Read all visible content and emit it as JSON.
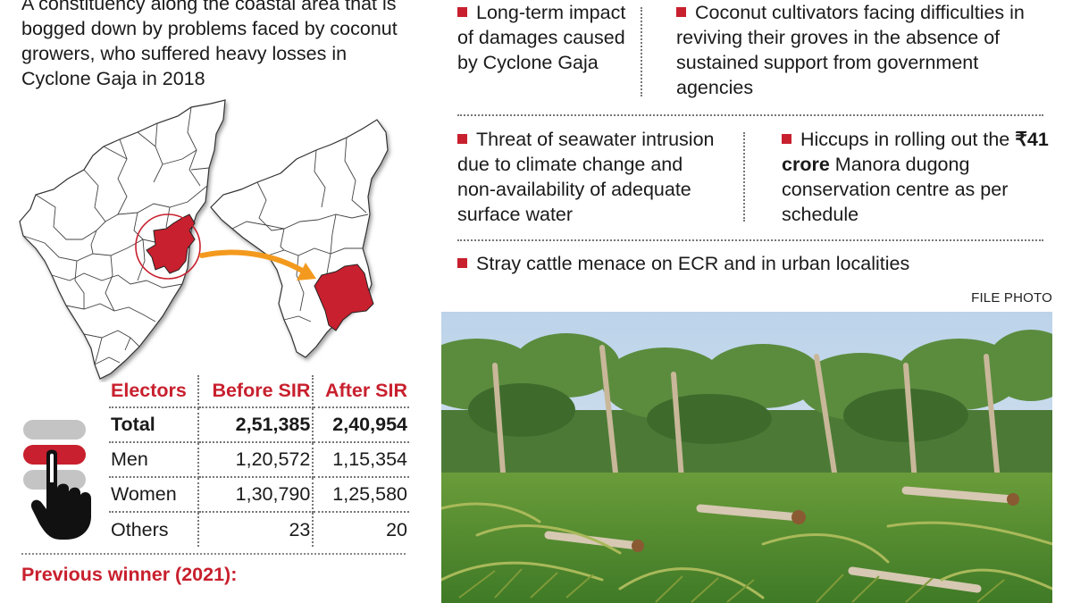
{
  "intro_text": "A constituency along the coastal area that is bogged down by problems faced by coconut growers, who suffered heavy losses in Cyclone Gaja in 2018",
  "electors": {
    "headers": [
      "Electors",
      "Before SIR",
      "After SIR"
    ],
    "rows": [
      {
        "label": "Total",
        "before": "2,51,385",
        "after": "2,40,954"
      },
      {
        "label": "Men",
        "before": "1,20,572",
        "after": "1,15,354"
      },
      {
        "label": "Women",
        "before": "1,30,790",
        "after": "1,25,580"
      },
      {
        "label": "Others",
        "before": "23",
        "after": "20"
      }
    ]
  },
  "previous_winner": {
    "title": "Previous winner (2021):",
    "subtitle": "…"
  },
  "issues": {
    "i1": "Long-term impact of damages caused by Cyclone Gaja",
    "i2": "Coconut cultivators facing difficulties in reviving their groves in the absence of sustained support from government agencies",
    "i3": "Threat of seawater intrusion due to climate change and non-availability of adequate surface water",
    "i4_bold": "₹41 crore",
    "i4_pre": "Hiccups in rolling out the",
    "i4_post": "Manora dugong conservation centre as per schedule",
    "i5": "Stray cattle menace on ECR and in urban localities"
  },
  "photo_credit": "FILE PHOTO",
  "colors": {
    "accent_red": "#c8202e",
    "map_gray": "#ffffff",
    "arrow_orange": "#f39a1e"
  }
}
